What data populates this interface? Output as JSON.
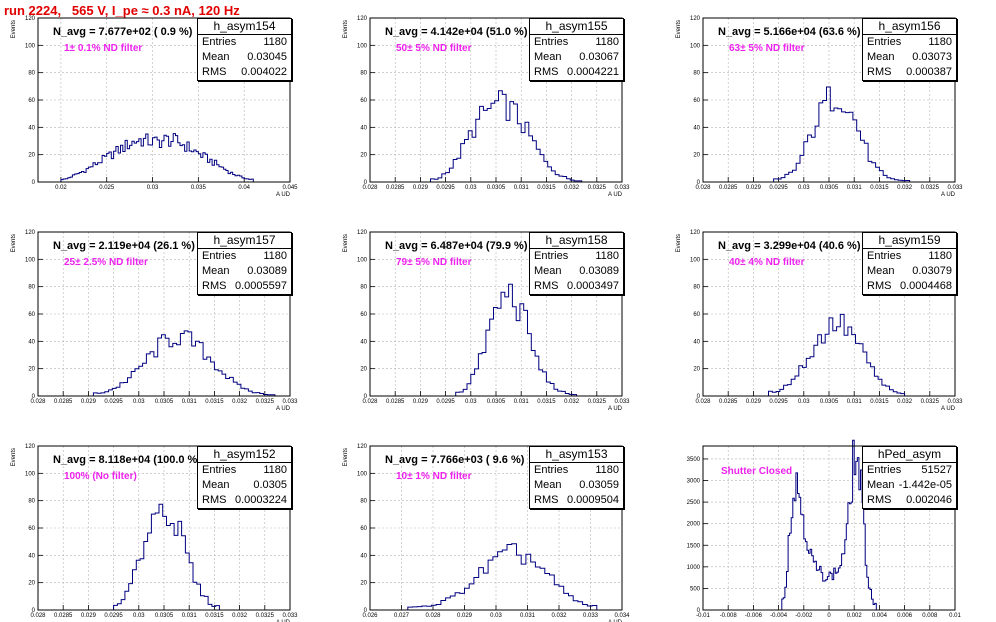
{
  "title": "run 2224,   565 V, I_pe ≈ 0.3 nA, 120 Hz",
  "colors": {
    "title": "#e00000",
    "histogram": "#000080",
    "filter_label": "#ee22ee",
    "grid": "#b4b4b4"
  },
  "chart_data": [
    {
      "type": "histogram",
      "name": "h_asym154",
      "navg": "N_avg = 7.677e+02 ( 0.9 %)",
      "filter": "1± 0.1% ND filter",
      "stats": {
        "entries": "1180",
        "mean": "0.03045",
        "rms": "0.004022"
      },
      "xlabel": "A UD",
      "ylabel": "Events",
      "xlim": [
        0.0175,
        0.045
      ],
      "ylim": [
        0,
        120
      ],
      "xticks": [
        "0.02",
        "0.025",
        "0.03",
        "0.035",
        "0.04",
        "0.045"
      ],
      "yticks": [
        "0",
        "20",
        "40",
        "60",
        "80",
        "100",
        "120"
      ],
      "x": [
        0.0205,
        0.0215,
        0.0225,
        0.0235,
        0.0245,
        0.0255,
        0.0265,
        0.0275,
        0.0285,
        0.0295,
        0.0305,
        0.0315,
        0.0325,
        0.0335,
        0.0345,
        0.0355,
        0.0365,
        0.0375,
        0.0385,
        0.0395,
        0.0405
      ],
      "values": [
        2,
        5,
        8,
        12,
        16,
        20,
        24,
        28,
        31,
        30,
        29,
        31,
        30,
        27,
        23,
        19,
        15,
        11,
        7,
        4,
        2
      ]
    },
    {
      "type": "histogram",
      "name": "h_asym155",
      "navg": "N_avg = 4.142e+04 (51.0 %)",
      "filter": "50± 5% ND filter",
      "stats": {
        "entries": "1180",
        "mean": "0.03067",
        "rms": "0.0004221"
      },
      "xlabel": "A UD",
      "ylabel": "Events",
      "xlim": [
        0.028,
        0.033
      ],
      "ylim": [
        0,
        120
      ],
      "xticks": [
        "0.028",
        "0.0285",
        "0.029",
        "0.0295",
        "0.03",
        "0.0305",
        "0.031",
        "0.0315",
        "0.032",
        "0.0325",
        "0.033"
      ],
      "yticks": [
        "0",
        "20",
        "40",
        "60",
        "80",
        "100",
        "120"
      ],
      "x": [
        0.02935,
        0.02965,
        0.02995,
        0.03025,
        0.03055,
        0.03085,
        0.03115,
        0.03145,
        0.03175,
        0.03205
      ],
      "values": [
        2,
        12,
        32,
        50,
        58,
        52,
        35,
        16,
        5,
        1
      ]
    },
    {
      "type": "histogram",
      "name": "h_asym156",
      "navg": "N_avg = 5.166e+04 (63.6 %)",
      "filter": "63± 5% ND filter",
      "stats": {
        "entries": "1180",
        "mean": "0.03073",
        "rms": "0.000387"
      },
      "xlabel": "A UD",
      "ylabel": "Events",
      "xlim": [
        0.028,
        0.033
      ],
      "ylim": [
        0,
        120
      ],
      "xticks": [
        "0.028",
        "0.0285",
        "0.029",
        "0.0295",
        "0.03",
        "0.0305",
        "0.031",
        "0.0315",
        "0.032",
        "0.0325",
        "0.033"
      ],
      "yticks": [
        "0",
        "20",
        "40",
        "60",
        "80",
        "100",
        "120"
      ],
      "x": [
        0.02955,
        0.02985,
        0.03015,
        0.03045,
        0.03075,
        0.03105,
        0.03135,
        0.03165,
        0.03195
      ],
      "values": [
        2,
        10,
        35,
        60,
        64,
        42,
        14,
        3,
        1
      ]
    },
    {
      "type": "histogram",
      "name": "h_asym157",
      "navg": "N_avg = 2.119e+04 (26.1 %)",
      "filter": "25± 2.5% ND filter",
      "stats": {
        "entries": "1180",
        "mean": "0.03089",
        "rms": "0.0005597"
      },
      "xlabel": "A UD",
      "ylabel": "Events",
      "xlim": [
        0.028,
        0.033
      ],
      "ylim": [
        0,
        120
      ],
      "xticks": [
        "0.028",
        "0.0285",
        "0.029",
        "0.0295",
        "0.03",
        "0.0305",
        "0.031",
        "0.0315",
        "0.032",
        "0.0325",
        "0.033"
      ],
      "yticks": [
        "0",
        "20",
        "40",
        "60",
        "80",
        "100",
        "120"
      ],
      "x": [
        0.02925,
        0.02955,
        0.02985,
        0.03015,
        0.03045,
        0.03075,
        0.03105,
        0.03135,
        0.03165,
        0.03195,
        0.03225,
        0.03255
      ],
      "values": [
        2,
        6,
        14,
        26,
        38,
        44,
        40,
        30,
        18,
        8,
        3,
        1
      ]
    },
    {
      "type": "histogram",
      "name": "h_asym158",
      "navg": "N_avg = 6.487e+04 (79.9 %)",
      "filter": "79± 5% ND filter",
      "stats": {
        "entries": "1180",
        "mean": "0.03089",
        "rms": "0.0003497"
      },
      "xlabel": "A UD",
      "ylabel": "Events",
      "xlim": [
        0.028,
        0.033
      ],
      "ylim": [
        0,
        120
      ],
      "xticks": [
        "0.028",
        "0.0285",
        "0.029",
        "0.0295",
        "0.03",
        "0.0305",
        "0.031",
        "0.0315",
        "0.032",
        "0.0325",
        "0.033"
      ],
      "yticks": [
        "0",
        "20",
        "40",
        "60",
        "80",
        "100",
        "120"
      ],
      "x": [
        0.02985,
        0.03015,
        0.03045,
        0.03075,
        0.03105,
        0.03135,
        0.03165,
        0.03195
      ],
      "values": [
        3,
        22,
        58,
        78,
        58,
        22,
        6,
        1
      ]
    },
    {
      "type": "histogram",
      "name": "h_asym159",
      "navg": "N_avg = 3.299e+04 (40.6 %)",
      "filter": "40± 4% ND filter",
      "stats": {
        "entries": "1180",
        "mean": "0.03079",
        "rms": "0.0004468"
      },
      "xlabel": "A UD",
      "ylabel": "Events",
      "xlim": [
        0.028,
        0.033
      ],
      "ylim": [
        0,
        120
      ],
      "xticks": [
        "0.028",
        "0.0285",
        "0.029",
        "0.0295",
        "0.03",
        "0.0305",
        "0.031",
        "0.0315",
        "0.032",
        "0.0325",
        "0.033"
      ],
      "yticks": [
        "0",
        "20",
        "40",
        "60",
        "80",
        "100",
        "120"
      ],
      "x": [
        0.02945,
        0.02975,
        0.03005,
        0.03035,
        0.03065,
        0.03095,
        0.03125,
        0.03155,
        0.03185
      ],
      "values": [
        3,
        10,
        26,
        44,
        55,
        46,
        26,
        9,
        2
      ]
    },
    {
      "type": "histogram",
      "name": "h_asym152",
      "navg": "N_avg = 8.118e+04 (100.0 %)",
      "filter": "100% (No filter)",
      "stats": {
        "entries": "1180",
        "mean": "0.0305",
        "rms": "0.0003224"
      },
      "xlabel": "A UD",
      "ylabel": "Events",
      "xlim": [
        0.028,
        0.033
      ],
      "ylim": [
        0,
        120
      ],
      "xticks": [
        "0.028",
        "0.0285",
        "0.029",
        "0.0295",
        "0.03",
        "0.0305",
        "0.031",
        "0.0315",
        "0.032",
        "0.0325",
        "0.033"
      ],
      "yticks": [
        "0",
        "20",
        "40",
        "60",
        "80",
        "100",
        "120"
      ],
      "x": [
        0.02965,
        0.02995,
        0.03025,
        0.03055,
        0.03085,
        0.03115,
        0.03145
      ],
      "values": [
        4,
        28,
        68,
        78,
        52,
        18,
        3
      ]
    },
    {
      "type": "histogram",
      "name": "h_asym153",
      "navg": "N_avg = 7.766e+03 ( 9.6 %)",
      "filter": "10± 1% ND filter",
      "stats": {
        "entries": "1180",
        "mean": "0.03059",
        "rms": "0.0009504"
      },
      "xlabel": "A UD",
      "ylabel": "Events",
      "xlim": [
        0.026,
        0.034
      ],
      "ylim": [
        0,
        120
      ],
      "xticks": [
        "0.026",
        "0.027",
        "0.028",
        "0.029",
        "0.03",
        "0.031",
        "0.032",
        "0.033",
        "0.034"
      ],
      "yticks": [
        "0",
        "20",
        "40",
        "60",
        "80",
        "100",
        "120"
      ],
      "x": [
        0.0275,
        0.0281,
        0.0287,
        0.0293,
        0.0299,
        0.0305,
        0.0311,
        0.0317,
        0.0323,
        0.0329
      ],
      "values": [
        2,
        4,
        10,
        22,
        35,
        42,
        38,
        24,
        10,
        3
      ]
    },
    {
      "type": "histogram",
      "name": "hPed_asym",
      "navg": "",
      "filter": "Shutter Closed",
      "stats": {
        "entries": "51527",
        "mean": "-1.442e-05",
        "rms": "0.002046"
      },
      "xlabel": "",
      "ylabel": "",
      "xlim": [
        -0.01,
        0.01
      ],
      "ylim": [
        0,
        3800
      ],
      "xticks": [
        "-0.01",
        "-0.008",
        "-0.006",
        "-0.004",
        "-0.002",
        "0",
        "0.002",
        "0.004",
        "0.006",
        "0.008",
        "0.01"
      ],
      "yticks": [
        "0",
        "500",
        "1000",
        "1500",
        "2000",
        "2500",
        "3000",
        "3500"
      ],
      "x": [
        -0.0035,
        -0.003,
        -0.0025,
        -0.002,
        -0.0015,
        -0.001,
        -0.0005,
        0,
        0.0005,
        0.001,
        0.0015,
        0.002,
        0.0025,
        0.003,
        0.0035
      ],
      "values": [
        300,
        2400,
        2950,
        2100,
        1300,
        950,
        820,
        780,
        850,
        1100,
        1900,
        3650,
        3050,
        900,
        150
      ]
    }
  ]
}
